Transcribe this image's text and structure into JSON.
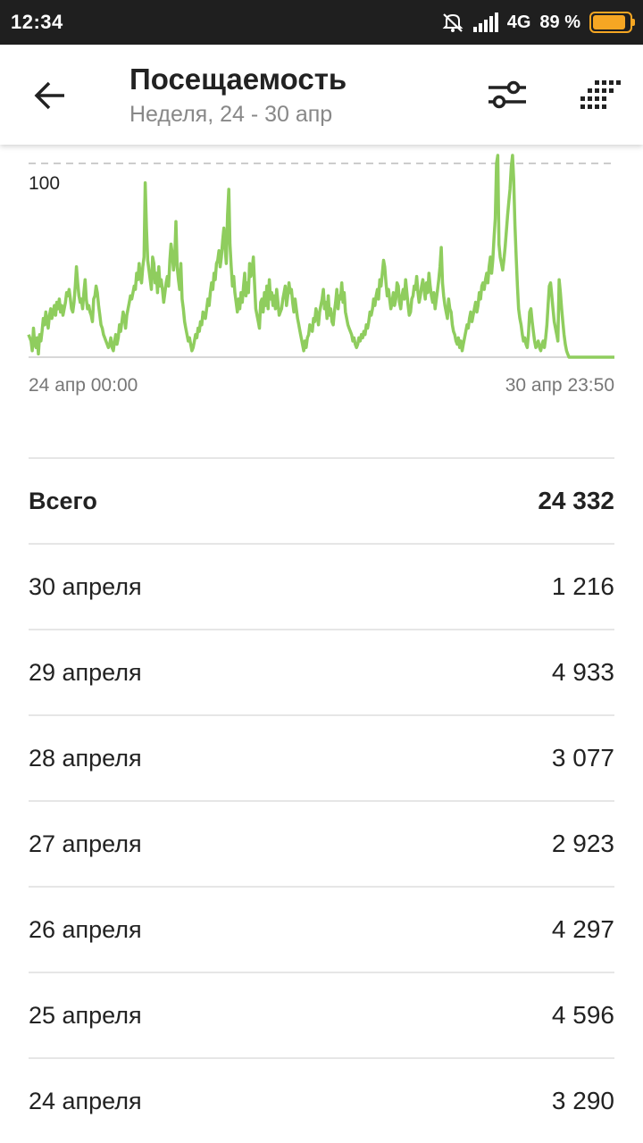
{
  "status_bar": {
    "time": "12:34",
    "network": "4G",
    "battery_percent": "89 %",
    "battery_level": 0.89,
    "icons": [
      "mute-icon",
      "signal-icon",
      "battery-icon"
    ]
  },
  "header": {
    "title": "Посещаемость",
    "subtitle": "Неделя, 24 - 30 апр",
    "icons": [
      "back-arrow-icon",
      "filter-icon",
      "grid-icon"
    ]
  },
  "chart_data": {
    "type": "line",
    "color": "#8fcd5e",
    "y_tick_label": "100",
    "y_ref_line": 120,
    "x_start_label": "24 апр 00:00",
    "x_end_label": "30 апр 23:50",
    "ylim": [
      0,
      125
    ],
    "values": [
      14,
      12,
      10,
      4,
      18,
      8,
      6,
      12,
      2,
      14,
      10,
      16,
      24,
      20,
      28,
      22,
      18,
      26,
      30,
      24,
      28,
      32,
      26,
      34,
      30,
      36,
      28,
      32,
      26,
      30,
      34,
      40,
      38,
      42,
      36,
      30,
      28,
      34,
      44,
      56,
      46,
      38,
      34,
      36,
      30,
      40,
      48,
      36,
      30,
      32,
      28,
      26,
      22,
      36,
      38,
      44,
      40,
      32,
      26,
      20,
      18,
      14,
      12,
      10,
      8,
      6,
      8,
      12,
      6,
      4,
      10,
      14,
      8,
      12,
      20,
      16,
      22,
      28,
      24,
      18,
      26,
      30,
      34,
      38,
      36,
      40,
      44,
      42,
      52,
      48,
      58,
      50,
      46,
      56,
      62,
      108,
      80,
      60,
      54,
      48,
      42,
      62,
      58,
      46,
      52,
      40,
      56,
      44,
      48,
      42,
      34,
      40,
      46,
      50,
      44,
      60,
      70,
      64,
      54,
      62,
      84,
      56,
      48,
      42,
      58,
      36,
      30,
      22,
      18,
      14,
      10,
      12,
      8,
      4,
      6,
      10,
      14,
      12,
      18,
      16,
      22,
      20,
      28,
      26,
      24,
      30,
      36,
      32,
      40,
      46,
      42,
      52,
      48,
      58,
      60,
      66,
      56,
      62,
      72,
      80,
      68,
      58,
      88,
      104,
      70,
      56,
      44,
      50,
      40,
      34,
      28,
      36,
      30,
      40,
      34,
      44,
      52,
      38,
      46,
      40,
      58,
      50,
      54,
      62,
      46,
      30,
      26,
      22,
      18,
      34,
      36,
      28,
      40,
      32,
      44,
      30,
      48,
      36,
      40,
      32,
      38,
      30,
      42,
      34,
      26,
      28,
      30,
      36,
      40,
      44,
      32,
      38,
      46,
      40,
      42,
      34,
      28,
      36,
      30,
      24,
      20,
      16,
      12,
      8,
      4,
      10,
      6,
      12,
      14,
      20,
      18,
      16,
      24,
      22,
      30,
      26,
      20,
      28,
      32,
      36,
      42,
      30,
      34,
      24,
      38,
      26,
      30,
      22,
      20,
      28,
      34,
      42,
      30,
      38,
      36,
      46,
      34,
      40,
      28,
      24,
      20,
      18,
      16,
      14,
      10,
      12,
      8,
      6,
      8,
      12,
      10,
      14,
      12,
      16,
      14,
      20,
      18,
      22,
      28,
      26,
      30,
      36,
      32,
      38,
      42,
      36,
      48,
      44,
      52,
      60,
      56,
      46,
      38,
      42,
      36,
      30,
      34,
      40,
      32,
      36,
      46,
      44,
      34,
      30,
      38,
      42,
      36,
      48,
      40,
      32,
      26,
      28,
      36,
      38,
      44,
      42,
      50,
      40,
      34,
      38,
      44,
      48,
      42,
      36,
      46,
      40,
      52,
      44,
      38,
      34,
      40,
      30,
      36,
      42,
      48,
      56,
      68,
      46,
      38,
      32,
      28,
      24,
      36,
      30,
      28,
      20,
      16,
      14,
      10,
      8,
      12,
      6,
      10,
      4,
      8,
      12,
      16,
      20,
      18,
      24,
      28,
      22,
      26,
      30,
      34,
      28,
      32,
      40,
      36,
      44,
      46,
      42,
      48,
      52,
      46,
      56,
      62,
      52,
      60,
      74,
      86,
      120,
      130,
      70,
      62,
      58,
      54,
      60,
      68,
      78,
      88,
      96,
      104,
      118,
      130,
      110,
      82,
      62,
      44,
      30,
      24,
      20,
      14,
      10,
      12,
      8,
      6,
      14,
      28,
      30,
      22,
      16,
      10,
      6,
      8,
      10,
      6,
      4,
      8,
      10,
      6,
      12,
      20,
      32,
      44,
      46,
      38,
      30,
      22,
      18,
      14,
      10,
      48,
      40,
      30,
      22,
      14,
      8,
      4,
      2,
      0,
      0,
      0,
      0,
      0,
      0,
      0,
      0,
      0,
      0,
      0,
      0,
      0,
      0,
      0,
      0,
      0,
      0,
      0,
      0,
      0,
      0,
      0,
      0,
      0,
      0,
      0,
      0,
      0,
      0,
      0,
      0,
      0,
      0,
      0,
      0,
      0,
      0
    ]
  },
  "stats": [
    {
      "label": "Всего",
      "value": "24 332",
      "total": true
    },
    {
      "label": "30 апреля",
      "value": "1 216"
    },
    {
      "label": "29 апреля",
      "value": "4 933"
    },
    {
      "label": "28 апреля",
      "value": "3 077"
    },
    {
      "label": "27 апреля",
      "value": "2 923"
    },
    {
      "label": "26 апреля",
      "value": "4 297"
    },
    {
      "label": "25 апреля",
      "value": "4 596"
    },
    {
      "label": "24 апреля",
      "value": "3 290"
    }
  ]
}
